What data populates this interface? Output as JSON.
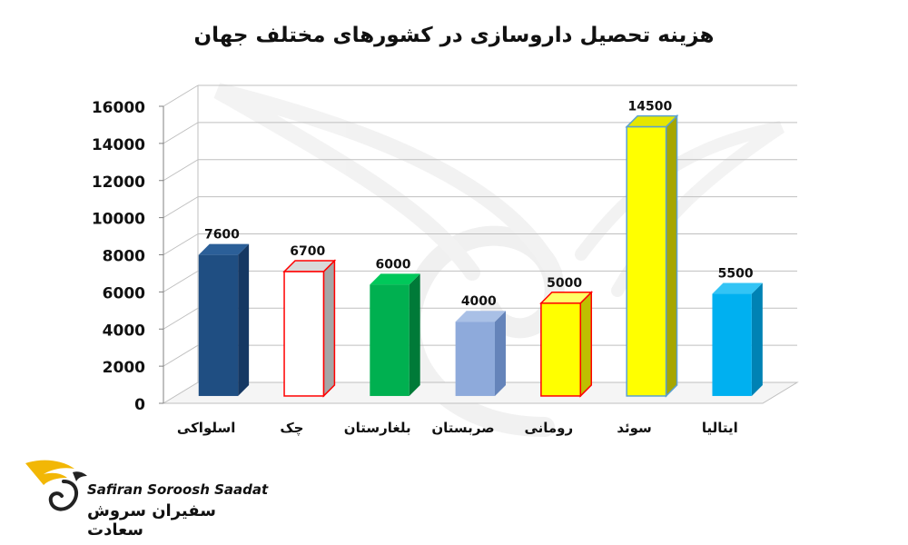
{
  "chart_data": {
    "type": "bar",
    "title": "هزینه تحصیل داروسازی در کشورهای مختلف جهان",
    "categories": [
      "اسلواکی",
      "چک",
      "بلغارستان",
      "صربستان",
      "رومانی",
      "سوئد",
      "ایتالیا"
    ],
    "values": [
      7600,
      6700,
      6000,
      4000,
      5000,
      14500,
      5500
    ],
    "data_labels": [
      "7600",
      "6700",
      "6000",
      "4000",
      "5000",
      "14500",
      "5500"
    ],
    "yticks": [
      "0",
      "2000",
      "4000",
      "6000",
      "8000",
      "10000",
      "12000",
      "14000",
      "16000"
    ],
    "ylim": [
      0,
      16000
    ],
    "grid": true,
    "style": "3d-column",
    "bar_colors": [
      {
        "front": "#1f4e82",
        "side": "#153863",
        "top": "#2b5f98",
        "stroke": "none"
      },
      {
        "front": "#ffffff",
        "side": "#a6a6a6",
        "top": "#d9d9d9",
        "stroke": "#ff0000"
      },
      {
        "front": "#00b050",
        "side": "#007a38",
        "top": "#00c85a",
        "stroke": "none"
      },
      {
        "front": "#8eaadb",
        "side": "#6584ba",
        "top": "#a9c0e6",
        "stroke": "none"
      },
      {
        "front": "#ffff00",
        "side": "#bfbf00",
        "top": "#ffff66",
        "stroke": "#ff0000"
      },
      {
        "front": "#ffff00",
        "side": "#a6a600",
        "top": "#e6e600",
        "stroke": "#5aa0d0"
      },
      {
        "front": "#00b0f0",
        "side": "#0082b4",
        "top": "#33c4f5",
        "stroke": "none"
      }
    ]
  },
  "logo": {
    "latin": "Safiran Soroosh Saadat",
    "persian": "سفیران سروش سعادت",
    "accent_color": "#f2b705"
  }
}
